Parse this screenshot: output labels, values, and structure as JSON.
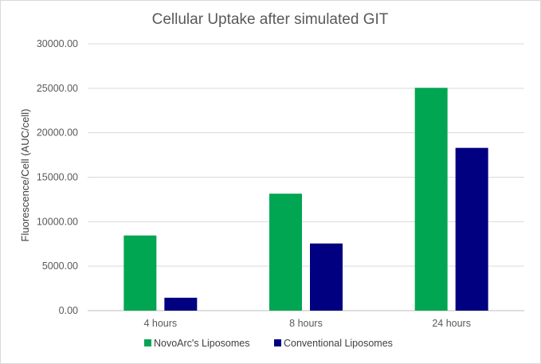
{
  "chart_data": {
    "type": "bar",
    "title": "Cellular Uptake after simulated GIT",
    "ylabel": "Fluorescence/Cell (AUC/cell)",
    "xlabel": "",
    "categories": [
      "4 hours",
      "8 hours",
      "24 hours"
    ],
    "series": [
      {
        "name": "NovoArc's Liposomes",
        "color": "#00a651",
        "values": [
          8450,
          13150,
          25050
        ]
      },
      {
        "name": "Conventional Liposomes",
        "color": "#000080",
        "values": [
          1450,
          7550,
          18300
        ]
      }
    ],
    "ylim": [
      0,
      30000
    ],
    "yticks": [
      "0.00",
      "5000.00",
      "10000.00",
      "15000.00",
      "20000.00",
      "25000.00",
      "30000.00"
    ],
    "grid": true,
    "legend_position": "bottom"
  }
}
